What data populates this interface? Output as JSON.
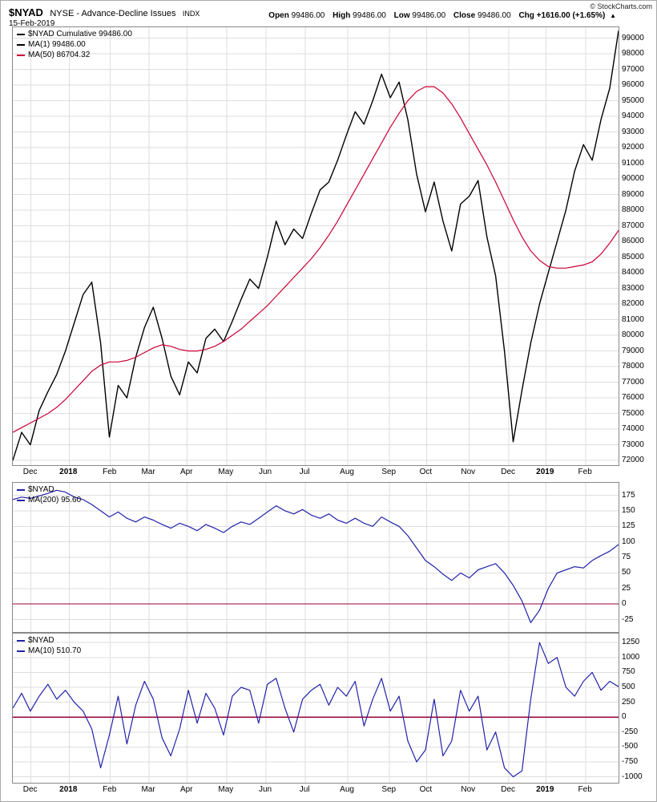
{
  "header": {
    "symbol": "$NYAD",
    "name": "NYSE - Advance-Decline Issues",
    "exchange": "INDX",
    "date": "15-Feb-2019",
    "quote": {
      "open_label": "Open",
      "open": "99486.00",
      "high_label": "High",
      "high": "99486.00",
      "low_label": "Low",
      "low": "99486.00",
      "close_label": "Close",
      "close": "99486.00",
      "chg_label": "Chg",
      "chg": "+1616.00 (+1.65%)",
      "direction_arrow": "▲"
    },
    "copyright": "© StockCharts.com"
  },
  "colors": {
    "grid": "#dedede",
    "panel_border": "#888888",
    "price_line": "#000000",
    "ma50_line": "#cc0033",
    "blue_line": "#2222aa",
    "zero_line": "#990033"
  },
  "x_axis": {
    "ticks": [
      {
        "label": "Dec",
        "x": 0.03,
        "bold": false
      },
      {
        "label": "2018",
        "x": 0.093,
        "bold": true
      },
      {
        "label": "Feb",
        "x": 0.161,
        "bold": false
      },
      {
        "label": "Mar",
        "x": 0.225,
        "bold": false
      },
      {
        "label": "Apr",
        "x": 0.288,
        "bold": false
      },
      {
        "label": "May",
        "x": 0.353,
        "bold": false
      },
      {
        "label": "Jun",
        "x": 0.418,
        "bold": false
      },
      {
        "label": "Jul",
        "x": 0.483,
        "bold": false
      },
      {
        "label": "Aug",
        "x": 0.553,
        "bold": false
      },
      {
        "label": "Sep",
        "x": 0.622,
        "bold": false
      },
      {
        "label": "Oct",
        "x": 0.683,
        "bold": false
      },
      {
        "label": "Nov",
        "x": 0.753,
        "bold": false
      },
      {
        "label": "Dec",
        "x": 0.819,
        "bold": false
      },
      {
        "label": "2019",
        "x": 0.88,
        "bold": true
      },
      {
        "label": "Feb",
        "x": 0.946,
        "bold": false
      }
    ]
  },
  "chart_data": [
    {
      "id": "main",
      "type": "line",
      "title": "$NYAD Cumulative",
      "ylim": [
        71700,
        99700
      ],
      "ystep": 1000,
      "show_xlabels": true,
      "legend": [
        {
          "color": "#000000",
          "label": "$NYAD Cumulative 99486.00"
        },
        {
          "color": "#000000",
          "label": "MA(1) 99486.00"
        },
        {
          "color": "#cc0033",
          "label": "MA(50) 86704.32"
        }
      ],
      "series": [
        {
          "name": "NYAD Cumulative",
          "color": "#000000",
          "width": 1.4,
          "values": [
            72000,
            73800,
            73000,
            75200,
            76400,
            77500,
            79000,
            80800,
            82600,
            83400,
            79500,
            73500,
            76800,
            76000,
            78600,
            80500,
            81800,
            79800,
            77400,
            76200,
            78300,
            77600,
            79800,
            80400,
            79600,
            80900,
            82300,
            83600,
            83000,
            85000,
            87300,
            85800,
            86800,
            86200,
            87800,
            89300,
            89800,
            91200,
            92800,
            94300,
            93500,
            95000,
            96700,
            95200,
            96200,
            93800,
            90300,
            87900,
            89800,
            87300,
            85400,
            88400,
            88900,
            89900,
            86300,
            83800,
            79000,
            73200,
            76500,
            79500,
            82000,
            84000,
            86000,
            88000,
            90500,
            92200,
            91200,
            93800,
            95800,
            99486
          ]
        },
        {
          "name": "MA(50)",
          "color": "#cc0033",
          "width": 1.2,
          "values": [
            73800,
            74100,
            74400,
            74700,
            75000,
            75400,
            75900,
            76500,
            77100,
            77700,
            78100,
            78300,
            78300,
            78400,
            78600,
            78900,
            79200,
            79400,
            79300,
            79100,
            79000,
            79000,
            79100,
            79300,
            79600,
            80000,
            80400,
            80900,
            81400,
            81900,
            82500,
            83100,
            83700,
            84300,
            84900,
            85600,
            86400,
            87300,
            88300,
            89300,
            90300,
            91300,
            92300,
            93300,
            94200,
            95000,
            95600,
            95900,
            95900,
            95500,
            94800,
            93900,
            92900,
            91900,
            90900,
            89800,
            88600,
            87400,
            86300,
            85400,
            84800,
            84400,
            84300,
            84300,
            84400,
            84500,
            84700,
            85200,
            85900,
            86704
          ]
        }
      ]
    },
    {
      "id": "ma200",
      "type": "line",
      "title": "$NYAD MA(200)",
      "ylim": [
        -45,
        195
      ],
      "ystep": 25,
      "zero_line": true,
      "show_xlabels": false,
      "legend": [
        {
          "color": "#2222aa",
          "label": "$NYAD"
        },
        {
          "color": "#2222aa",
          "label": "MA(200) 95.60"
        }
      ],
      "series": [
        {
          "name": "MA(200)",
          "color": "#2222aa",
          "width": 1.2,
          "values": [
            168,
            172,
            170,
            174,
            178,
            183,
            180,
            172,
            168,
            160,
            150,
            140,
            148,
            138,
            132,
            140,
            135,
            128,
            122,
            130,
            125,
            118,
            128,
            122,
            115,
            125,
            132,
            128,
            138,
            148,
            158,
            150,
            145,
            152,
            143,
            138,
            145,
            135,
            130,
            138,
            130,
            125,
            140,
            132,
            125,
            110,
            90,
            70,
            60,
            48,
            38,
            50,
            42,
            55,
            60,
            65,
            50,
            30,
            5,
            -30,
            -10,
            25,
            50,
            55,
            60,
            58,
            70,
            78,
            85,
            95.6
          ]
        }
      ]
    },
    {
      "id": "ma10",
      "type": "line",
      "title": "$NYAD MA(10)",
      "ylim": [
        -1100,
        1400
      ],
      "ystep": 250,
      "zero_line": true,
      "show_xlabels": true,
      "legend": [
        {
          "color": "#2222aa",
          "label": "$NYAD"
        },
        {
          "color": "#2222aa",
          "label": "MA(10) 510.70"
        }
      ],
      "series": [
        {
          "name": "MA(10)",
          "color": "#2222aa",
          "width": 1.2,
          "values": [
            150,
            400,
            100,
            350,
            550,
            300,
            450,
            250,
            100,
            -200,
            -850,
            -300,
            350,
            -450,
            200,
            600,
            300,
            -350,
            -650,
            -200,
            450,
            -100,
            400,
            150,
            -300,
            350,
            500,
            450,
            -100,
            550,
            650,
            150,
            -250,
            300,
            450,
            550,
            200,
            500,
            350,
            600,
            -150,
            300,
            650,
            100,
            350,
            -400,
            -750,
            -550,
            300,
            -650,
            -400,
            450,
            100,
            350,
            -550,
            -250,
            -850,
            -1000,
            -900,
            300,
            1250,
            900,
            1000,
            500,
            350,
            600,
            750,
            450,
            600,
            510.7
          ]
        }
      ]
    }
  ]
}
